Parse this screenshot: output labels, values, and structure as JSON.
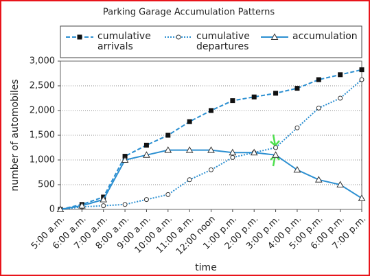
{
  "chart_data": {
    "type": "line",
    "title": "Parking Garage Accumulation Patterns",
    "x_label": "time",
    "y_label": "number of automobiles",
    "categories": [
      "5:00 a.m.",
      "6:00 a.m.",
      "7:00 a.m.",
      "8:00 a.m.",
      "9:00 a.m.",
      "10:00 a.m.",
      "11:00 a.m.",
      "12:00 noon",
      "1:00 p.m.",
      "2:00 p.m.",
      "3:00 p.m.",
      "4:00 p.m.",
      "5:00 p.m.",
      "6:00 p.m.",
      "7:00 p.m."
    ],
    "series": [
      {
        "name": "cumulative arrivals",
        "color": "#2b8fd1",
        "marker": "square",
        "dash": "dashed",
        "values": [
          0,
          100,
          250,
          1075,
          1300,
          1500,
          1775,
          2000,
          2200,
          2275,
          2350,
          2450,
          2625,
          2725,
          2825
        ]
      },
      {
        "name": "cumulative departures",
        "color": "#2b8fd1",
        "marker": "circle",
        "dash": "dotted",
        "values": [
          0,
          50,
          75,
          100,
          200,
          300,
          600,
          800,
          1050,
          1150,
          1250,
          1650,
          2050,
          2250,
          2625
        ]
      },
      {
        "name": "accumulation",
        "color": "#2b8fd1",
        "marker": "triangle",
        "dash": "solid",
        "values": [
          0,
          75,
          200,
          1000,
          1100,
          1200,
          1200,
          1200,
          1150,
          1150,
          1100,
          800,
          600,
          500,
          225
        ]
      }
    ],
    "ylim": [
      0,
      3000
    ],
    "yticks": [
      0,
      500,
      {
        "value": 1000,
        "label": "1,000"
      },
      {
        "value": 1500,
        "label": "1,500"
      },
      {
        "value": 2000,
        "label": "2,000"
      },
      {
        "value": 2500,
        "label": "2,500"
      },
      {
        "value": 3000,
        "label": "3,000"
      }
    ],
    "grid": true
  }
}
